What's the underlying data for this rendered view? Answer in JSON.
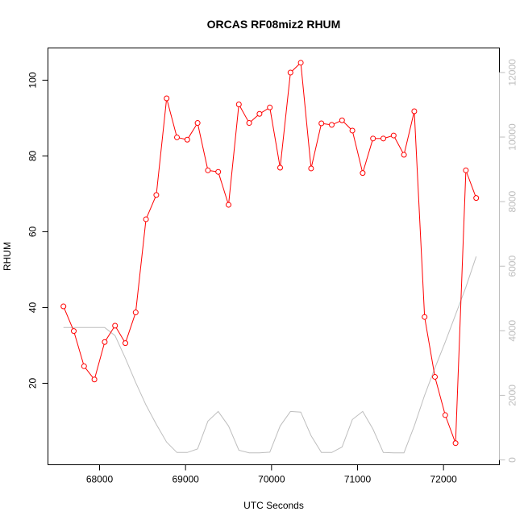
{
  "chart_data": {
    "type": "line",
    "title": "ORCAS RF08miz2 RHUM",
    "xlabel": "UTC Seconds",
    "ylabel": "RHUM",
    "xlim": [
      67400,
      72650
    ],
    "ylim": [
      -1.5,
      108.5
    ],
    "y2lim": [
      -150,
      12760
    ],
    "xticks": [
      68000,
      69000,
      70000,
      71000,
      72000
    ],
    "yticks": [
      20,
      40,
      60,
      80,
      100
    ],
    "y2ticks": [
      0,
      2000,
      4000,
      6000,
      8000,
      10000,
      12000
    ],
    "grid": false,
    "series": [
      {
        "axis": "left",
        "color": "#ff0000",
        "marker": "open-circle",
        "x": [
          67580,
          67700,
          67820,
          67940,
          68060,
          68180,
          68300,
          68420,
          68540,
          68660,
          68780,
          68900,
          69020,
          69140,
          69260,
          69380,
          69500,
          69620,
          69740,
          69860,
          69980,
          70100,
          70220,
          70340,
          70460,
          70580,
          70700,
          70820,
          70940,
          71060,
          71180,
          71300,
          71420,
          71540,
          71660,
          71780,
          71900,
          72020,
          72140,
          72260,
          72380
        ],
        "values": [
          40.3,
          33.8,
          24.5,
          21.0,
          30.9,
          35.2,
          30.6,
          38.7,
          63.3,
          69.7,
          95.2,
          84.9,
          84.3,
          88.7,
          76.2,
          75.8,
          67.1,
          93.6,
          88.7,
          91.1,
          92.8,
          76.9,
          102.0,
          104.6,
          76.7,
          88.6,
          88.2,
          89.4,
          86.7,
          75.5,
          84.6,
          84.6,
          85.4,
          80.3,
          91.8,
          37.5,
          21.7,
          11.6,
          4.2,
          76.2,
          68.9
        ]
      },
      {
        "axis": "right",
        "color": "#bebebe",
        "marker": "none",
        "x": [
          67580,
          67700,
          67820,
          67940,
          68060,
          68180,
          68300,
          68420,
          68540,
          68660,
          68780,
          68900,
          69020,
          69140,
          69260,
          69380,
          69500,
          69620,
          69740,
          69860,
          69980,
          70100,
          70220,
          70340,
          70460,
          70580,
          70700,
          70820,
          70940,
          71060,
          71180,
          71300,
          71420,
          71540,
          71660,
          71780,
          71900,
          72020,
          72140,
          72260,
          72380
        ],
        "values": [
          4100,
          4100,
          4100,
          4100,
          4100,
          3850,
          3150,
          2400,
          1700,
          1100,
          550,
          230,
          230,
          340,
          1200,
          1500,
          1050,
          300,
          220,
          220,
          240,
          1050,
          1500,
          1480,
          750,
          230,
          230,
          400,
          1250,
          1500,
          950,
          230,
          220,
          220,
          1050,
          2000,
          2850,
          3650,
          4500,
          5350,
          6300
        ]
      }
    ]
  }
}
